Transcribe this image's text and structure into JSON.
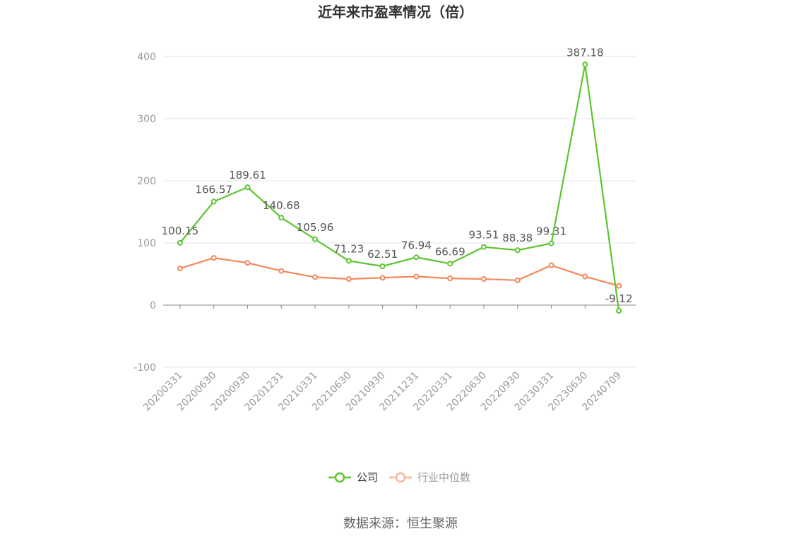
{
  "chart_data": {
    "type": "line",
    "title": "近年来市盈率情况（倍）",
    "categories": [
      "20200331",
      "20200630",
      "20200930",
      "20201231",
      "20210331",
      "20210630",
      "20210930",
      "20211231",
      "20220331",
      "20220630",
      "20220930",
      "20230331",
      "20230630",
      "20240709"
    ],
    "series": [
      {
        "name": "公司",
        "color": "#5cc52e",
        "values": [
          100.15,
          166.57,
          189.61,
          140.68,
          105.96,
          71.23,
          62.51,
          76.94,
          66.69,
          93.51,
          88.38,
          99.31,
          387.18,
          -9.12
        ],
        "labels": [
          "100.15",
          "166.57",
          "189.61",
          "140.68",
          "105.96",
          "71.23",
          "62.51",
          "76.94",
          "66.69",
          "93.51",
          "88.38",
          "99.31",
          "387.18",
          "-9.12"
        ]
      },
      {
        "name": "行业中位数",
        "color": "#f5875a",
        "legend_color": "#f8b59a",
        "values": [
          59,
          76,
          68,
          55,
          45,
          42,
          44,
          46,
          43,
          42,
          40,
          64,
          46,
          31
        ]
      }
    ],
    "yticks": [
      "-100",
      "0",
      "100",
      "200",
      "300",
      "400"
    ],
    "ylim": [
      -100,
      400
    ],
    "grid": true,
    "legend_position": "bottom"
  },
  "source": "数据来源：恒生聚源"
}
